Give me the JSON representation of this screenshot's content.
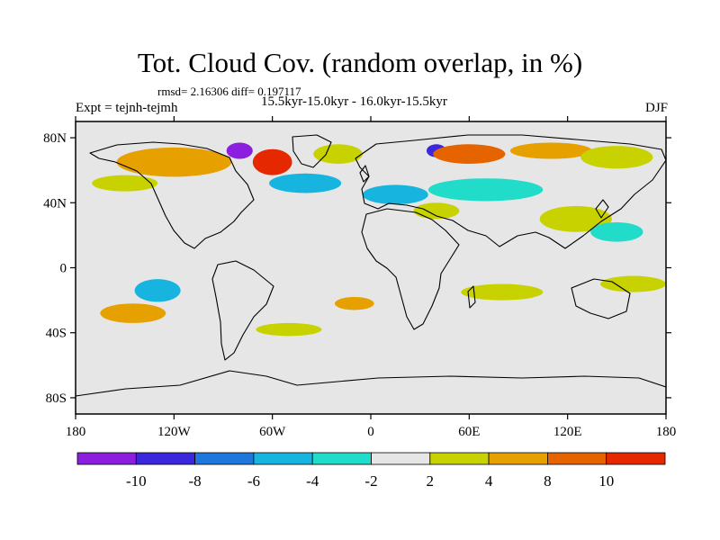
{
  "title": "Tot. Cloud Cov. (random overlap, in %)",
  "stats": "rmsd= 2.16306 diff= 0.197117",
  "expt": "Expt = tejnh-tejmh",
  "period": "15.5kyr-15.0kyr - 16.0kyr-15.5kyr",
  "season": "DJF",
  "map": {
    "lon_range": [
      -180,
      180
    ],
    "lat_range": [
      -90,
      90
    ],
    "lon_ticks": [
      {
        "value": -180,
        "label": "180"
      },
      {
        "value": -120,
        "label": "120W"
      },
      {
        "value": -60,
        "label": "60W"
      },
      {
        "value": 0,
        "label": "0"
      },
      {
        "value": 60,
        "label": "60E"
      },
      {
        "value": 120,
        "label": "120E"
      },
      {
        "value": 180,
        "label": "180"
      }
    ],
    "lat_ticks": [
      {
        "value": 80,
        "label": "80N"
      },
      {
        "value": 40,
        "label": "40N"
      },
      {
        "value": 0,
        "label": "0"
      },
      {
        "value": -40,
        "label": "40S"
      },
      {
        "value": -80,
        "label": "80S"
      }
    ],
    "background_color": "#e6e6e6"
  },
  "colorbar": {
    "colors": [
      "#8c1ee0",
      "#3c28dc",
      "#1e78dc",
      "#18b4e0",
      "#20dcc8",
      "#e6e6e6",
      "#c8d200",
      "#e6a000",
      "#e66400",
      "#e62800"
    ],
    "labels": [
      "-10",
      "-8",
      "-6",
      "-4",
      "-2",
      "2",
      "4",
      "8",
      "10"
    ]
  },
  "anomalies": [
    {
      "lon": -120,
      "lat": 65,
      "rx": 35,
      "ry": 9,
      "level": 7
    },
    {
      "lon": -80,
      "lat": 72,
      "rx": 8,
      "ry": 5,
      "level": 0
    },
    {
      "lon": -60,
      "lat": 65,
      "rx": 12,
      "ry": 8,
      "level": 9
    },
    {
      "lon": -20,
      "lat": 70,
      "rx": 15,
      "ry": 6,
      "level": 6
    },
    {
      "lon": 40,
      "lat": 72,
      "rx": 6,
      "ry": 4,
      "level": 1
    },
    {
      "lon": 60,
      "lat": 70,
      "rx": 22,
      "ry": 6,
      "level": 8
    },
    {
      "lon": 110,
      "lat": 72,
      "rx": 25,
      "ry": 5,
      "level": 7
    },
    {
      "lon": 150,
      "lat": 68,
      "rx": 22,
      "ry": 7,
      "level": 6
    },
    {
      "lon": -40,
      "lat": 52,
      "rx": 22,
      "ry": 6,
      "level": 3
    },
    {
      "lon": 15,
      "lat": 45,
      "rx": 20,
      "ry": 6,
      "level": 3
    },
    {
      "lon": 70,
      "lat": 48,
      "rx": 35,
      "ry": 7,
      "level": 4
    },
    {
      "lon": -150,
      "lat": 52,
      "rx": 20,
      "ry": 5,
      "level": 6
    },
    {
      "lon": 125,
      "lat": 30,
      "rx": 22,
      "ry": 8,
      "level": 6
    },
    {
      "lon": 150,
      "lat": 22,
      "rx": 16,
      "ry": 6,
      "level": 4
    },
    {
      "lon": 40,
      "lat": 35,
      "rx": 14,
      "ry": 5,
      "level": 6
    },
    {
      "lon": -130,
      "lat": -14,
      "rx": 14,
      "ry": 7,
      "level": 3
    },
    {
      "lon": -145,
      "lat": -28,
      "rx": 20,
      "ry": 6,
      "level": 7
    },
    {
      "lon": 80,
      "lat": -15,
      "rx": 25,
      "ry": 5,
      "level": 6
    },
    {
      "lon": 160,
      "lat": -10,
      "rx": 20,
      "ry": 5,
      "level": 6
    },
    {
      "lon": -10,
      "lat": -22,
      "rx": 12,
      "ry": 4,
      "level": 7
    },
    {
      "lon": -50,
      "lat": -38,
      "rx": 20,
      "ry": 4,
      "level": 6
    }
  ]
}
